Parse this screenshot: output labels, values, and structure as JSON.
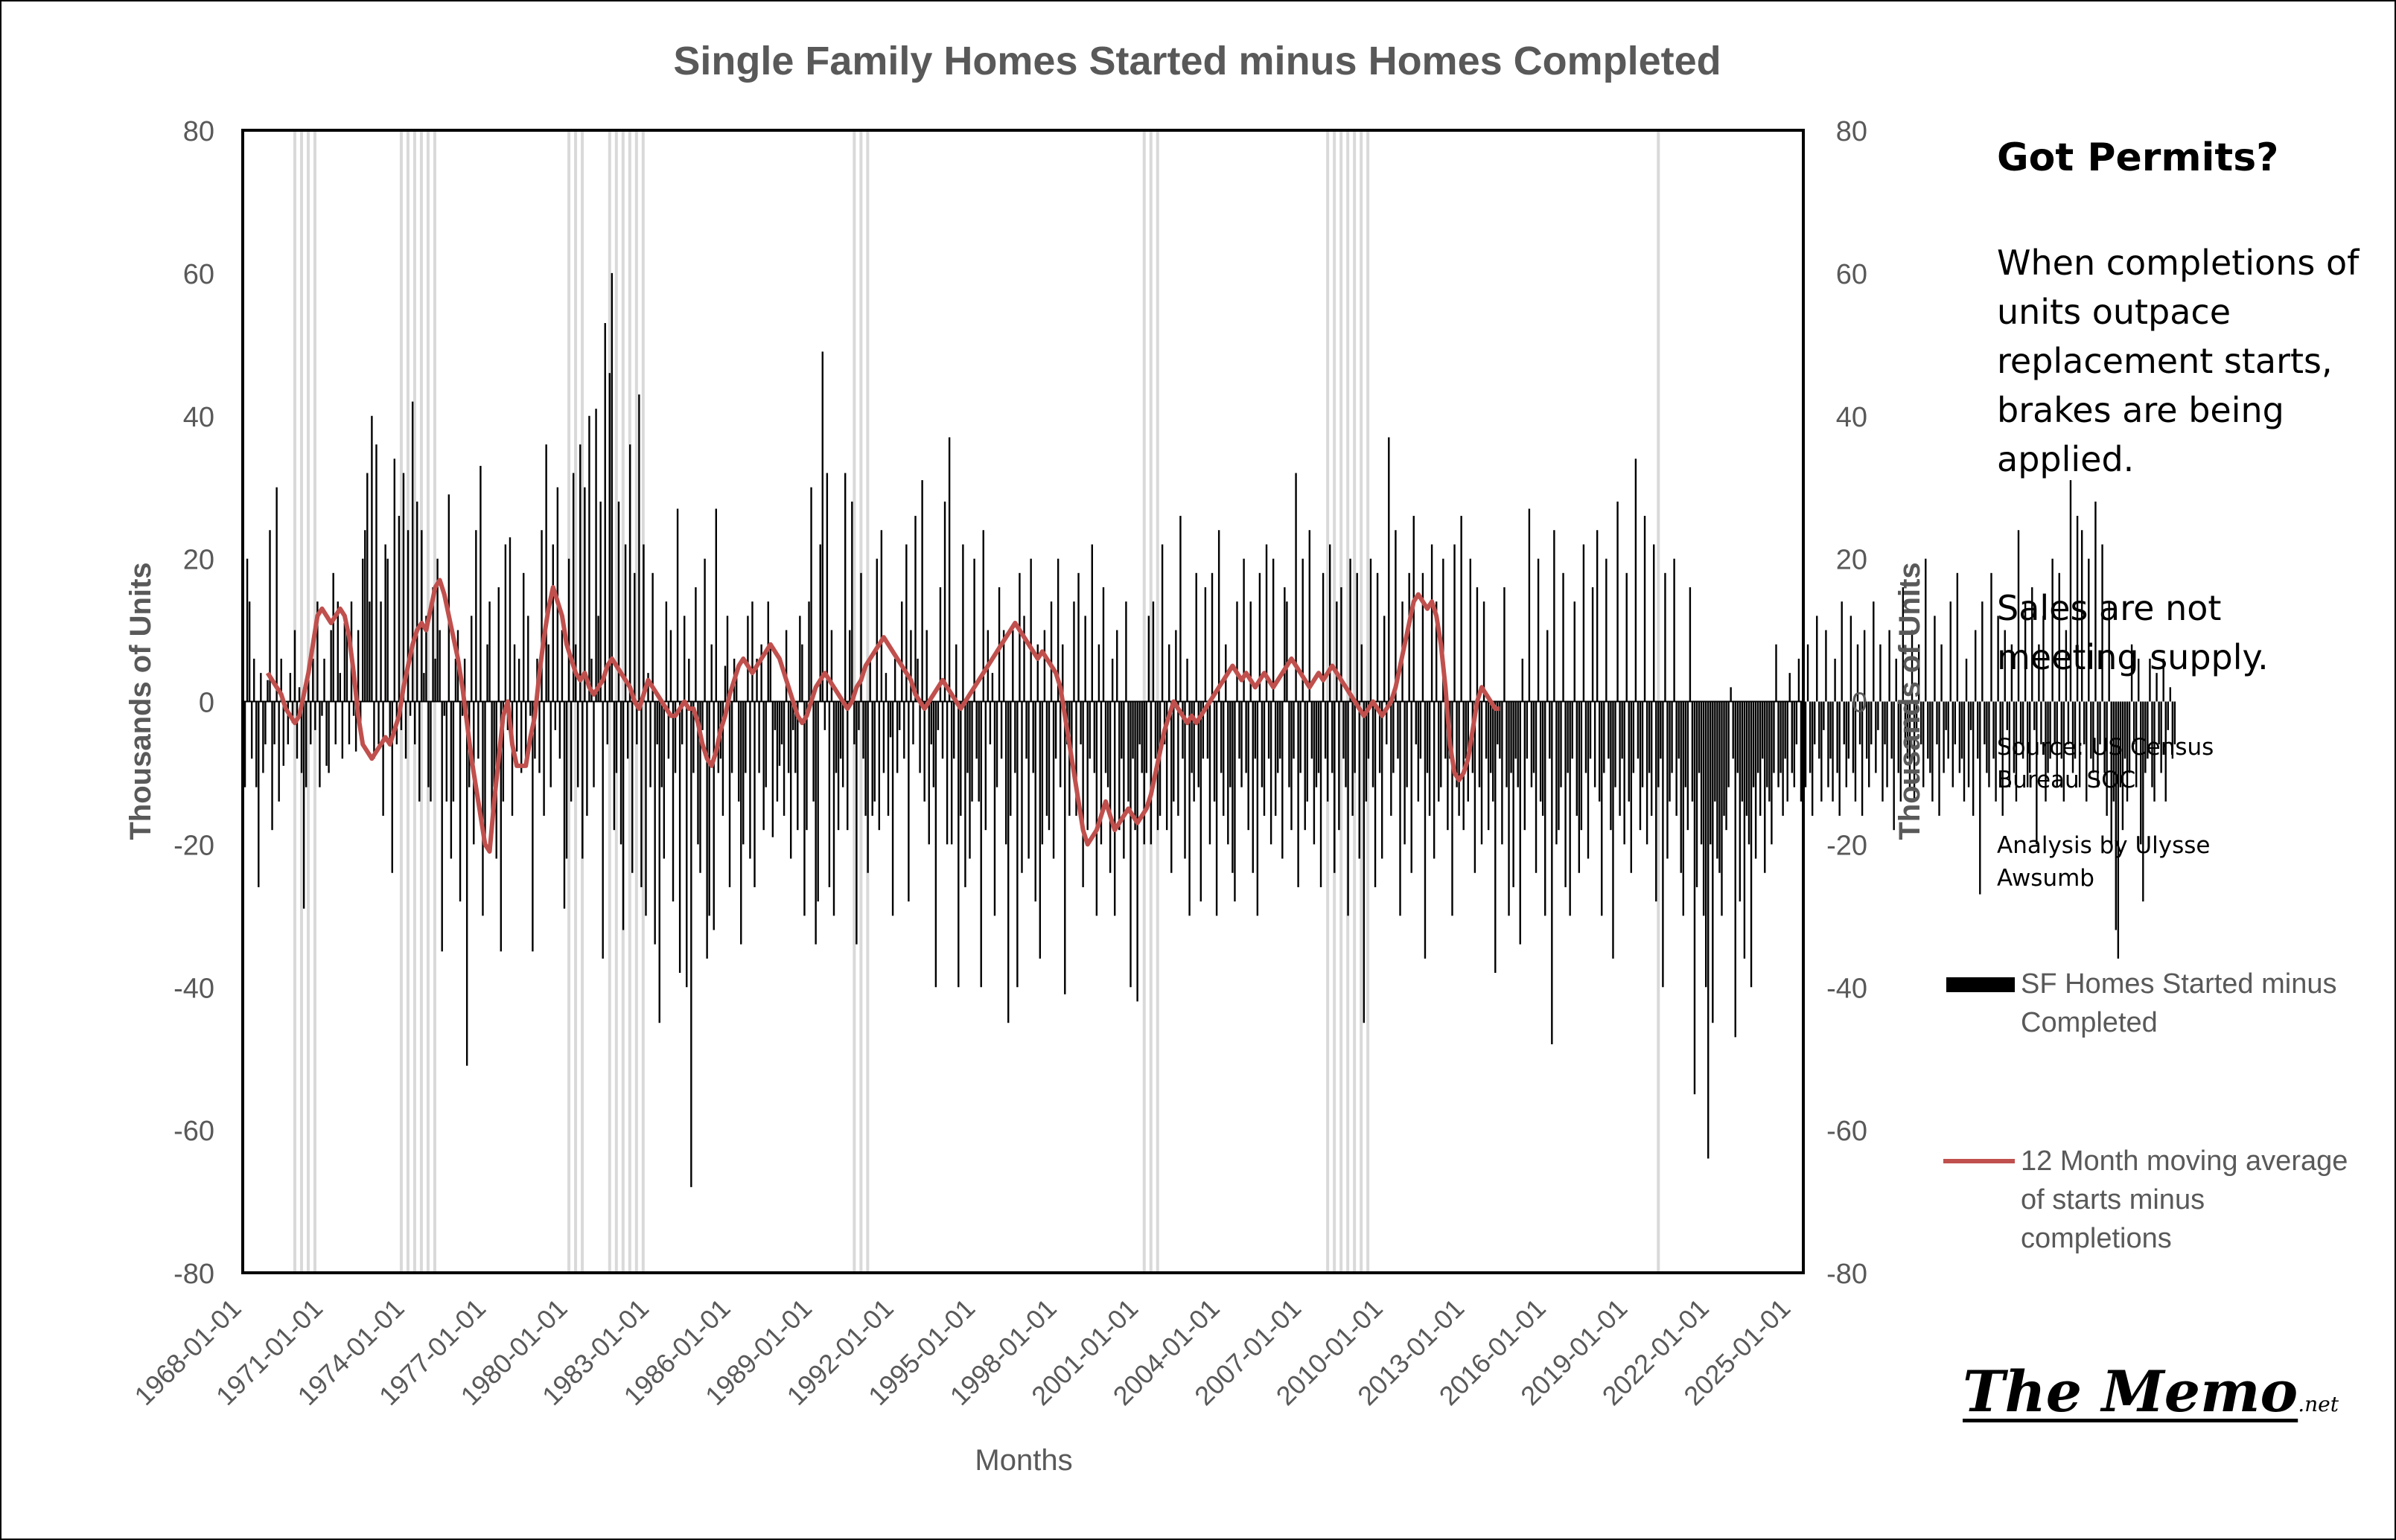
{
  "chart_data": {
    "type": "bar",
    "title": "Single Family Homes Started minus Homes  Completed",
    "xlabel": "Months",
    "ylabel_left": "Thousands of Units",
    "ylabel_right": "Thousands of Units",
    "ylim": [
      -80,
      80
    ],
    "yticks": [
      80,
      60,
      40,
      20,
      0,
      -20,
      -40,
      -60,
      -80
    ],
    "xlim": [
      "1968-01-01",
      "2025-06-01"
    ],
    "xticks": [
      "1968-01-01",
      "1971-01-01",
      "1974-01-01",
      "1977-01-01",
      "1980-01-01",
      "1983-01-01",
      "1986-01-01",
      "1989-01-01",
      "1992-01-01",
      "1995-01-01",
      "1998-01-01",
      "2001-01-01",
      "2004-01-01",
      "2007-01-01",
      "2010-01-01",
      "2013-01-01",
      "2016-01-01",
      "2019-01-01",
      "2022-01-01",
      "2025-01-01"
    ],
    "recessions": [
      [
        "1969-12",
        "1970-11"
      ],
      [
        "1973-11",
        "1975-03"
      ],
      [
        "1980-01",
        "1980-07"
      ],
      [
        "1981-07",
        "1982-11"
      ],
      [
        "1990-07",
        "1991-03"
      ],
      [
        "2001-03",
        "2001-11"
      ],
      [
        "2007-12",
        "2009-06"
      ],
      [
        "2020-02",
        "2020-04"
      ]
    ],
    "series": [
      {
        "name": "SF Homes Started minus Completed",
        "kind": "bar",
        "color": "#000000",
        "start": "1968-01",
        "values": [
          31,
          -12,
          20,
          14,
          -8,
          6,
          -12,
          -26,
          4,
          -10,
          -6,
          3,
          24,
          -18,
          -6,
          30,
          -14,
          6,
          -9,
          0,
          -6,
          4,
          -3,
          10,
          -8,
          2,
          -10,
          -29,
          -12,
          3,
          -6,
          6,
          -4,
          14,
          -12,
          -2,
          6,
          -9,
          -10,
          10,
          18,
          -6,
          14,
          4,
          -8,
          11,
          10,
          -6,
          14,
          -2,
          -7,
          10,
          -3,
          20,
          24,
          32,
          14,
          40,
          -8,
          36,
          -6,
          14,
          -16,
          22,
          20,
          -6,
          -24,
          34,
          -6,
          26,
          -4,
          32,
          -8,
          24,
          -2,
          42,
          -6,
          28,
          -14,
          24,
          4,
          12,
          -12,
          -14,
          16,
          6,
          20,
          10,
          -35,
          -2,
          -14,
          29,
          -22,
          -14,
          6,
          10,
          -28,
          -2,
          6,
          -51,
          -12,
          12,
          -20,
          24,
          -8,
          33,
          -30,
          -20,
          8,
          14,
          -18,
          -12,
          -22,
          16,
          -35,
          -14,
          22,
          -4,
          23,
          -16,
          8,
          -7,
          6,
          -10,
          18,
          -8,
          12,
          -2,
          -35,
          -8,
          6,
          -10,
          24,
          -16,
          36,
          8,
          -12,
          22,
          -4,
          30,
          -8,
          10,
          -29,
          -22,
          20,
          -14,
          32,
          8,
          -12,
          36,
          -22,
          30,
          -16,
          40,
          6,
          -12,
          41,
          12,
          28,
          -36,
          53,
          -6,
          46,
          60,
          -18,
          -10,
          28,
          -20,
          -32,
          22,
          -8,
          36,
          -24,
          18,
          -6,
          43,
          -26,
          22,
          -30,
          4,
          -12,
          18,
          -34,
          -6,
          -45,
          -12,
          -22,
          14,
          -8,
          10,
          -28,
          -10,
          27,
          -38,
          -6,
          12,
          -40,
          6,
          -68,
          -10,
          16,
          -20,
          -24,
          -4,
          20,
          -36,
          -30,
          8,
          -32,
          27,
          -10,
          -8,
          -16,
          5,
          12,
          -26,
          -10,
          6,
          4,
          -14,
          -34,
          -20,
          -10,
          12,
          -22,
          14,
          -26,
          6,
          -10,
          8,
          -18,
          -12,
          14,
          8,
          -19,
          -4,
          -14,
          -9,
          -6,
          -16,
          10,
          -10,
          -22,
          -4,
          -10,
          -18,
          12,
          8,
          -30,
          -18,
          14,
          30,
          -14,
          -34,
          -28,
          22,
          49,
          -4,
          32,
          -26,
          10,
          -30,
          -10,
          -18,
          -8,
          -12,
          32,
          -18,
          10,
          28,
          -6,
          -34,
          -4,
          18,
          -8,
          -16,
          -24,
          6,
          -16,
          -14,
          20,
          -18,
          24,
          -10,
          4,
          -16,
          -5,
          -30,
          6,
          -10,
          -4,
          14,
          -8,
          22,
          -28,
          10,
          -6,
          26,
          6,
          -10,
          31,
          -14,
          10,
          -20,
          -6,
          -12,
          -40,
          -4,
          16,
          -8,
          28,
          -20,
          37,
          -20,
          -8,
          8,
          -40,
          -16,
          22,
          -26,
          -10,
          -22,
          -14,
          20,
          -8,
          -14,
          -40,
          24,
          -18,
          10,
          -6,
          4,
          -30,
          -12,
          16,
          -8,
          10,
          -20,
          -45,
          -16,
          10,
          -10,
          -40,
          18,
          -24,
          12,
          -8,
          -22,
          20,
          -10,
          -28,
          8,
          -36,
          -20,
          10,
          -16,
          -18,
          14,
          -22,
          -8,
          20,
          -12,
          8,
          -41,
          -6,
          -16,
          -8,
          14,
          -16,
          18,
          -6,
          -26,
          12,
          -18,
          -8,
          22,
          -10,
          -30,
          8,
          -20,
          16,
          -10,
          -12,
          -24,
          6,
          -30,
          10,
          -18,
          -8,
          -22,
          14,
          -14,
          -40,
          -8,
          -18,
          -42,
          -6,
          -10,
          -20,
          -10,
          12,
          -20,
          14,
          -8,
          -18,
          -16,
          22,
          -6,
          -18,
          8,
          -24,
          -14,
          10,
          -16,
          26,
          -8,
          -22,
          6,
          -30,
          -10,
          -14,
          18,
          -12,
          -28,
          -8,
          16,
          -8,
          -20,
          18,
          -14,
          -30,
          24,
          -10,
          -16,
          8,
          -20,
          -12,
          -24,
          -28,
          14,
          -8,
          -12,
          20,
          -10,
          -18,
          14,
          -24,
          -8,
          -30,
          18,
          -12,
          -16,
          22,
          -8,
          -20,
          20,
          -16,
          -10,
          -8,
          -22,
          16,
          14,
          -12,
          -18,
          -8,
          32,
          -26,
          -10,
          20,
          -18,
          -14,
          24,
          -8,
          -20,
          -12,
          -10,
          -26,
          18,
          -8,
          -14,
          22,
          -10,
          -24,
          14,
          -18,
          16,
          -8,
          -12,
          -30,
          20,
          -16,
          -10,
          18,
          -22,
          8,
          -45,
          -14,
          -8,
          20,
          -12,
          -26,
          18,
          -10,
          -22,
          12,
          -6,
          37,
          -16,
          -10,
          24,
          -8,
          -30,
          14,
          -20,
          -12,
          18,
          -24,
          26,
          -6,
          -14,
          -8,
          18,
          -36,
          -10,
          -16,
          22,
          -22,
          14,
          -14,
          -12,
          20,
          -8,
          -18,
          -8,
          -30,
          22,
          -12,
          -16,
          26,
          -18,
          -8,
          -14,
          20,
          -10,
          -24,
          16,
          -12,
          -20,
          14,
          -8,
          -18,
          -10,
          -14,
          -38,
          -6,
          -8,
          -20,
          16,
          -12,
          -30,
          -10,
          -26,
          -8,
          -12,
          -34,
          6,
          -18,
          -8,
          27,
          -12,
          -10,
          -24,
          20,
          -14,
          -16,
          -30,
          10,
          -8,
          -48,
          24,
          -20,
          -18,
          -12,
          18,
          -26,
          -10,
          -30,
          -8,
          14,
          -16,
          -24,
          -18,
          22,
          -10,
          -22,
          -8,
          16,
          -12,
          24,
          -14,
          -30,
          -10,
          20,
          -8,
          -18,
          -36,
          -12,
          28,
          -16,
          -8,
          -20,
          18,
          -14,
          -24,
          -10,
          34,
          -8,
          -18,
          -12,
          26,
          -20,
          -10,
          -16,
          22,
          -28,
          -12,
          -8,
          -40,
          18,
          -22,
          -14,
          -10,
          20,
          -16,
          -8,
          -24,
          -30,
          -12,
          -18,
          16,
          -14,
          -55,
          -26,
          -10,
          -20,
          -30,
          -40,
          -64,
          -20,
          -45,
          -14,
          -22,
          -24,
          -30,
          -16,
          -18,
          -12,
          2,
          -8,
          -47,
          -10,
          -28,
          -14,
          -36,
          -16,
          -20,
          -40,
          -12,
          -22,
          -10,
          -16,
          -8,
          -24,
          -12,
          -14,
          -20,
          -10,
          8,
          -12,
          -10,
          -16,
          -8,
          -14,
          4,
          -10,
          -12,
          -6,
          6,
          -14,
          -8,
          -12,
          8,
          -10,
          -16,
          -6,
          12,
          -8,
          -14,
          -4,
          10,
          -12,
          -8,
          -14,
          6,
          -10,
          -16,
          14,
          -6,
          -12,
          -8,
          12,
          -10,
          -14,
          8,
          -6,
          -16,
          10,
          -8,
          -12,
          -6,
          14,
          -10,
          -4,
          8,
          -14,
          -6,
          -12,
          10,
          -8,
          -18,
          6,
          -10,
          -14,
          16,
          -6,
          -8,
          -12,
          10,
          -14,
          -4,
          8,
          -6,
          -12,
          20,
          -8,
          -10,
          -14,
          12,
          -6,
          -16,
          8,
          -10,
          -4,
          -8,
          14,
          -12,
          -6,
          18,
          -10,
          -8,
          -14,
          6,
          -12,
          -4,
          -16,
          10,
          -8,
          -27,
          14,
          -6,
          -10,
          -12,
          18,
          -8,
          -14,
          12,
          -6,
          -16,
          10,
          -4,
          -12,
          8,
          -10,
          -14,
          24,
          -6,
          -8,
          14,
          -12,
          -10,
          16,
          -4,
          -20,
          8,
          -6,
          12,
          -14,
          -10,
          -8,
          20,
          -6,
          -12,
          18,
          -8,
          -14,
          10,
          -6,
          31,
          -10,
          -8,
          26,
          -12,
          24,
          -6,
          -14,
          20,
          -8,
          -10,
          28,
          -12,
          -6,
          22,
          -10,
          -16,
          14,
          -20,
          -14,
          -32,
          -36,
          -12,
          -18,
          -8,
          -14,
          -10,
          8,
          -6,
          -12,
          6,
          -20,
          -28,
          -10,
          -8,
          6,
          -12,
          -14,
          4,
          -6,
          -10,
          6,
          -14,
          -4,
          2,
          -8,
          -6
        ]
      },
      {
        "name": "12 Month moving average of starts minus completions",
        "kind": "line",
        "color": "#c0504d",
        "start": "1968-12",
        "values": [
          4,
          3,
          2,
          1,
          -1,
          -2,
          -3,
          -2,
          1,
          4,
          8,
          12,
          13,
          12,
          11,
          12,
          13,
          12,
          9,
          4,
          -2,
          -6,
          -7,
          -8,
          -7,
          -6,
          -5,
          -6,
          -4,
          -2,
          2,
          5,
          8,
          10,
          11,
          10,
          13,
          16,
          17,
          15,
          12,
          9,
          6,
          2,
          -3,
          -8,
          -12,
          -16,
          -20,
          -21,
          -14,
          -8,
          -2,
          0,
          -6,
          -9,
          -9,
          -9,
          -5,
          -2,
          4,
          9,
          13,
          16,
          14,
          12,
          8,
          6,
          4,
          3,
          4,
          2,
          1,
          2,
          3,
          5,
          6,
          5,
          4,
          3,
          2,
          0,
          -1,
          1,
          3,
          2,
          1,
          0,
          -1,
          -2,
          -2,
          -1,
          0,
          -1,
          -1,
          -3,
          -6,
          -8,
          -9,
          -7,
          -4,
          -2,
          1,
          3,
          5,
          6,
          5,
          4,
          5,
          6,
          7,
          8,
          7,
          6,
          4,
          2,
          0,
          -2,
          -3,
          -2,
          0,
          2,
          3,
          4,
          3,
          2,
          1,
          0,
          -1,
          0,
          2,
          3,
          5,
          6,
          7,
          8,
          9,
          8,
          7,
          6,
          5,
          4,
          3,
          1,
          0,
          -1,
          0,
          1,
          2,
          3,
          2,
          1,
          0,
          -1,
          0,
          1,
          2,
          3,
          4,
          5,
          6,
          7,
          8,
          9,
          10,
          11,
          10,
          9,
          8,
          7,
          6,
          7,
          6,
          5,
          4,
          2,
          -2,
          -6,
          -10,
          -14,
          -18,
          -20,
          -19,
          -18,
          -16,
          -14,
          -16,
          -18,
          -17,
          -16,
          -15,
          -16,
          -17,
          -16,
          -15,
          -13,
          -10,
          -7,
          -4,
          -2,
          0,
          -1,
          -2,
          -3,
          -2,
          -3,
          -2,
          -1,
          0,
          1,
          2,
          3,
          4,
          5,
          4,
          3,
          4,
          3,
          2,
          3,
          4,
          3,
          2,
          3,
          4,
          5,
          6,
          5,
          4,
          3,
          2,
          3,
          4,
          3,
          4,
          5,
          4,
          3,
          2,
          1,
          0,
          -1,
          -2,
          -1,
          0,
          -1,
          -2,
          -1,
          0,
          2,
          5,
          8,
          11,
          14,
          15,
          14,
          13,
          14,
          12,
          8,
          2,
          -6,
          -10,
          -11,
          -10,
          -8,
          -4,
          0,
          2,
          1,
          0,
          -1,
          -1
        ]
      }
    ]
  },
  "side_panel": {
    "title": "Got Permits?",
    "body": "When completions of units outpace replacement starts, brakes are being applied.",
    "body2": "Sales are not meeting supply.",
    "source": "Source: US Census Bureau SOC",
    "analysis": "Analysis by Ulysse Awsumb"
  },
  "legend": {
    "bar_label": "SF Homes Started minus Completed",
    "line_label": "12 Month moving average of starts minus completions"
  },
  "logo": {
    "main": "The Memo",
    "suffix": ".net"
  }
}
